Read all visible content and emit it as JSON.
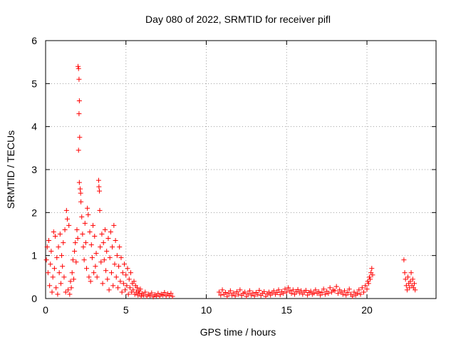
{
  "chart_data": {
    "type": "scatter",
    "title": "Day 080 of 2022, SRMTID for receiver pifl",
    "xlabel": "GPS time / hours",
    "ylabel": "SRMTID / TECUs",
    "xlim": [
      0,
      24.3
    ],
    "ylim": [
      0,
      6
    ],
    "xticks": [
      0,
      5,
      10,
      15,
      20
    ],
    "yticks": [
      0,
      1,
      2,
      3,
      4,
      5,
      6
    ],
    "xtick_labels": [
      "0",
      "5",
      "10",
      "15",
      "20"
    ],
    "ytick_labels": [
      "0",
      "1",
      "2",
      "3",
      "4",
      "5",
      "6"
    ],
    "grid": true,
    "marker": "+",
    "color": "#ff0000",
    "series": [
      {
        "name": "pifl",
        "points": [
          [
            0.05,
            0.9
          ],
          [
            0.1,
            1.2
          ],
          [
            0.15,
            0.6
          ],
          [
            0.2,
            1.35
          ],
          [
            0.25,
            0.3
          ],
          [
            0.3,
            0.8
          ],
          [
            0.35,
            1.1
          ],
          [
            0.4,
            0.15
          ],
          [
            0.45,
            0.5
          ],
          [
            0.5,
            1.55
          ],
          [
            0.55,
            0.7
          ],
          [
            0.6,
            1.45
          ],
          [
            0.65,
            0.25
          ],
          [
            0.7,
            0.95
          ],
          [
            0.75,
            0.1
          ],
          [
            0.8,
            1.2
          ],
          [
            0.85,
            0.6
          ],
          [
            0.9,
            1.5
          ],
          [
            0.95,
            0.35
          ],
          [
            1.0,
            1.0
          ],
          [
            1.05,
            0.75
          ],
          [
            1.1,
            1.3
          ],
          [
            1.15,
            0.5
          ],
          [
            1.2,
            1.6
          ],
          [
            1.25,
            0.15
          ],
          [
            1.3,
            2.05
          ],
          [
            1.35,
            1.85
          ],
          [
            1.4,
            0.2
          ],
          [
            1.45,
            1.7
          ],
          [
            1.5,
            0.1
          ],
          [
            1.55,
            0.4
          ],
          [
            1.6,
            0.25
          ],
          [
            1.65,
            0.6
          ],
          [
            1.7,
            0.9
          ],
          [
            1.75,
            0.45
          ],
          [
            1.8,
            1.1
          ],
          [
            1.85,
            1.3
          ],
          [
            1.9,
            0.85
          ],
          [
            1.95,
            1.6
          ],
          [
            2.0,
            1.4
          ],
          [
            2.02,
            5.4
          ],
          [
            2.05,
            5.35
          ],
          [
            2.08,
            5.1
          ],
          [
            2.1,
            4.6
          ],
          [
            2.08,
            4.3
          ],
          [
            2.12,
            3.75
          ],
          [
            2.05,
            3.45
          ],
          [
            2.1,
            2.7
          ],
          [
            2.15,
            2.55
          ],
          [
            2.18,
            2.45
          ],
          [
            2.2,
            2.25
          ],
          [
            2.25,
            1.9
          ],
          [
            2.3,
            1.5
          ],
          [
            2.35,
            1.2
          ],
          [
            2.4,
            0.9
          ],
          [
            2.45,
            1.75
          ],
          [
            2.5,
            1.3
          ],
          [
            2.55,
            0.7
          ],
          [
            2.6,
            2.1
          ],
          [
            2.65,
            1.95
          ],
          [
            2.7,
            0.5
          ],
          [
            2.75,
            1.55
          ],
          [
            2.8,
            0.4
          ],
          [
            2.85,
            1.25
          ],
          [
            2.9,
            0.95
          ],
          [
            2.95,
            1.7
          ],
          [
            3.0,
            0.6
          ],
          [
            3.05,
            1.45
          ],
          [
            3.1,
            0.75
          ],
          [
            3.15,
            1.05
          ],
          [
            3.2,
            0.5
          ],
          [
            3.3,
            2.75
          ],
          [
            3.32,
            2.6
          ],
          [
            3.35,
            2.5
          ],
          [
            3.37,
            2.05
          ],
          [
            3.4,
            1.2
          ],
          [
            3.45,
            0.85
          ],
          [
            3.5,
            1.5
          ],
          [
            3.55,
            0.35
          ],
          [
            3.6,
            1.3
          ],
          [
            3.65,
            0.9
          ],
          [
            3.7,
            1.6
          ],
          [
            3.75,
            0.65
          ],
          [
            3.8,
            1.1
          ],
          [
            3.85,
            0.45
          ],
          [
            3.9,
            1.4
          ],
          [
            3.95,
            0.2
          ],
          [
            4.0,
            0.95
          ],
          [
            4.05,
            1.55
          ],
          [
            4.1,
            0.6
          ],
          [
            4.15,
            1.2
          ],
          [
            4.2,
            0.3
          ],
          [
            4.25,
            1.7
          ],
          [
            4.3,
            0.8
          ],
          [
            4.35,
            1.35
          ],
          [
            4.4,
            0.5
          ],
          [
            4.45,
            1.0
          ],
          [
            4.5,
            0.25
          ],
          [
            4.55,
            0.75
          ],
          [
            4.6,
            1.2
          ],
          [
            4.65,
            0.4
          ],
          [
            4.7,
            0.95
          ],
          [
            4.75,
            0.15
          ],
          [
            4.8,
            0.6
          ],
          [
            4.85,
            0.35
          ],
          [
            4.9,
            0.8
          ],
          [
            4.95,
            0.2
          ],
          [
            5.0,
            0.55
          ],
          [
            5.05,
            0.3
          ],
          [
            5.1,
            0.7
          ],
          [
            5.15,
            0.1
          ],
          [
            5.2,
            0.45
          ],
          [
            5.25,
            0.25
          ],
          [
            5.3,
            0.6
          ],
          [
            5.35,
            0.15
          ],
          [
            5.4,
            0.35
          ],
          [
            5.45,
            0.2
          ],
          [
            5.5,
            0.4
          ],
          [
            5.55,
            0.1
          ],
          [
            5.6,
            0.3
          ],
          [
            5.65,
            0.15
          ],
          [
            5.7,
            0.25
          ],
          [
            5.75,
            0.08
          ],
          [
            5.8,
            0.18
          ],
          [
            5.85,
            0.12
          ],
          [
            5.9,
            0.22
          ],
          [
            5.95,
            0.05
          ],
          [
            6.0,
            0.12
          ],
          [
            6.1,
            0.08
          ],
          [
            6.2,
            0.15
          ],
          [
            6.3,
            0.05
          ],
          [
            6.4,
            0.1
          ],
          [
            6.5,
            0.07
          ],
          [
            6.6,
            0.13
          ],
          [
            6.7,
            0.04
          ],
          [
            6.8,
            0.09
          ],
          [
            6.9,
            0.06
          ],
          [
            7.0,
            0.12
          ],
          [
            7.1,
            0.05
          ],
          [
            7.2,
            0.1
          ],
          [
            7.3,
            0.08
          ],
          [
            7.4,
            0.14
          ],
          [
            7.5,
            0.06
          ],
          [
            7.6,
            0.11
          ],
          [
            7.7,
            0.07
          ],
          [
            7.8,
            0.12
          ],
          [
            7.9,
            0.05
          ],
          [
            10.8,
            0.15
          ],
          [
            10.9,
            0.08
          ],
          [
            11.0,
            0.2
          ],
          [
            11.1,
            0.1
          ],
          [
            11.2,
            0.14
          ],
          [
            11.3,
            0.05
          ],
          [
            11.4,
            0.12
          ],
          [
            11.5,
            0.18
          ],
          [
            11.6,
            0.08
          ],
          [
            11.7,
            0.13
          ],
          [
            11.8,
            0.06
          ],
          [
            11.9,
            0.16
          ],
          [
            12.0,
            0.1
          ],
          [
            12.1,
            0.2
          ],
          [
            12.2,
            0.07
          ],
          [
            12.3,
            0.12
          ],
          [
            12.4,
            0.15
          ],
          [
            12.5,
            0.05
          ],
          [
            12.6,
            0.11
          ],
          [
            12.7,
            0.18
          ],
          [
            12.8,
            0.08
          ],
          [
            12.9,
            0.13
          ],
          [
            13.0,
            0.06
          ],
          [
            13.1,
            0.14
          ],
          [
            13.2,
            0.1
          ],
          [
            13.3,
            0.19
          ],
          [
            13.4,
            0.07
          ],
          [
            13.5,
            0.12
          ],
          [
            13.6,
            0.16
          ],
          [
            13.7,
            0.05
          ],
          [
            13.8,
            0.11
          ],
          [
            13.9,
            0.15
          ],
          [
            14.0,
            0.08
          ],
          [
            14.1,
            0.13
          ],
          [
            14.2,
            0.18
          ],
          [
            14.3,
            0.1
          ],
          [
            14.4,
            0.14
          ],
          [
            14.5,
            0.2
          ],
          [
            14.6,
            0.09
          ],
          [
            14.7,
            0.16
          ],
          [
            14.8,
            0.12
          ],
          [
            14.9,
            0.22
          ],
          [
            15.0,
            0.15
          ],
          [
            15.1,
            0.25
          ],
          [
            15.2,
            0.18
          ],
          [
            15.3,
            0.12
          ],
          [
            15.4,
            0.2
          ],
          [
            15.5,
            0.1
          ],
          [
            15.6,
            0.16
          ],
          [
            15.7,
            0.21
          ],
          [
            15.8,
            0.13
          ],
          [
            15.9,
            0.18
          ],
          [
            16.0,
            0.1
          ],
          [
            16.1,
            0.15
          ],
          [
            16.2,
            0.19
          ],
          [
            16.3,
            0.08
          ],
          [
            16.4,
            0.14
          ],
          [
            16.5,
            0.17
          ],
          [
            16.6,
            0.1
          ],
          [
            16.7,
            0.13
          ],
          [
            16.8,
            0.2
          ],
          [
            16.9,
            0.12
          ],
          [
            17.0,
            0.16
          ],
          [
            17.1,
            0.08
          ],
          [
            17.2,
            0.14
          ],
          [
            17.3,
            0.22
          ],
          [
            17.4,
            0.1
          ],
          [
            17.5,
            0.17
          ],
          [
            17.6,
            0.12
          ],
          [
            17.7,
            0.25
          ],
          [
            17.8,
            0.15
          ],
          [
            17.9,
            0.2
          ],
          [
            18.0,
            0.18
          ],
          [
            18.1,
            0.28
          ],
          [
            18.2,
            0.12
          ],
          [
            18.3,
            0.2
          ],
          [
            18.4,
            0.15
          ],
          [
            18.5,
            0.1
          ],
          [
            18.6,
            0.18
          ],
          [
            18.7,
            0.08
          ],
          [
            18.8,
            0.14
          ],
          [
            18.9,
            0.22
          ],
          [
            19.0,
            0.1
          ],
          [
            19.1,
            0.05
          ],
          [
            19.2,
            0.15
          ],
          [
            19.3,
            0.08
          ],
          [
            19.4,
            0.12
          ],
          [
            19.5,
            0.2
          ],
          [
            19.6,
            0.1
          ],
          [
            19.7,
            0.25
          ],
          [
            19.8,
            0.15
          ],
          [
            19.9,
            0.3
          ],
          [
            20.0,
            0.22
          ],
          [
            20.05,
            0.4
          ],
          [
            20.1,
            0.35
          ],
          [
            20.15,
            0.5
          ],
          [
            20.2,
            0.45
          ],
          [
            20.25,
            0.6
          ],
          [
            20.3,
            0.7
          ],
          [
            20.35,
            0.55
          ],
          [
            22.3,
            0.9
          ],
          [
            22.35,
            0.6
          ],
          [
            22.4,
            0.45
          ],
          [
            22.45,
            0.3
          ],
          [
            22.5,
            0.2
          ],
          [
            22.55,
            0.5
          ],
          [
            22.6,
            0.35
          ],
          [
            22.65,
            0.25
          ],
          [
            22.7,
            0.4
          ],
          [
            22.75,
            0.6
          ],
          [
            22.8,
            0.3
          ],
          [
            22.85,
            0.45
          ],
          [
            22.9,
            0.25
          ],
          [
            22.95,
            0.35
          ],
          [
            23.0,
            0.2
          ]
        ]
      }
    ]
  }
}
